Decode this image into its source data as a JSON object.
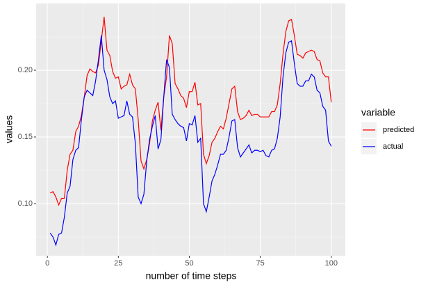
{
  "chart_data": {
    "type": "line",
    "xlabel": "number of time steps",
    "ylabel": "values",
    "legend_title": "variable",
    "legend_position": "right",
    "grid": true,
    "x": [
      1,
      2,
      3,
      4,
      5,
      6,
      7,
      8,
      9,
      10,
      11,
      12,
      13,
      14,
      15,
      16,
      17,
      18,
      19,
      20,
      21,
      22,
      23,
      24,
      25,
      26,
      27,
      28,
      29,
      30,
      31,
      32,
      33,
      34,
      35,
      36,
      37,
      38,
      39,
      40,
      41,
      42,
      43,
      44,
      45,
      46,
      47,
      48,
      49,
      50,
      51,
      52,
      53,
      54,
      55,
      56,
      57,
      58,
      59,
      60,
      61,
      62,
      63,
      64,
      65,
      66,
      67,
      68,
      69,
      70,
      71,
      72,
      73,
      74,
      75,
      76,
      77,
      78,
      79,
      80,
      81,
      82,
      83,
      84,
      85,
      86,
      87,
      88,
      89,
      90,
      91,
      92,
      93,
      94,
      95,
      96,
      97,
      98,
      99,
      100
    ],
    "series": [
      {
        "name": "predicted",
        "color": "#ff0000",
        "values": [
          0.108,
          0.109,
          0.105,
          0.099,
          0.104,
          0.104,
          0.125,
          0.137,
          0.14,
          0.154,
          0.158,
          0.166,
          0.18,
          0.196,
          0.201,
          0.199,
          0.198,
          0.204,
          0.222,
          0.24,
          0.215,
          0.211,
          0.199,
          0.194,
          0.195,
          0.186,
          0.188,
          0.189,
          0.197,
          0.189,
          0.186,
          0.163,
          0.132,
          0.126,
          0.133,
          0.145,
          0.162,
          0.17,
          0.176,
          0.155,
          0.18,
          0.195,
          0.226,
          0.22,
          0.19,
          0.186,
          0.181,
          0.179,
          0.172,
          0.184,
          0.184,
          0.191,
          0.174,
          0.175,
          0.137,
          0.13,
          0.136,
          0.146,
          0.149,
          0.154,
          0.158,
          0.156,
          0.164,
          0.175,
          0.186,
          0.188,
          0.169,
          0.163,
          0.164,
          0.166,
          0.17,
          0.166,
          0.167,
          0.167,
          0.165,
          0.165,
          0.165,
          0.165,
          0.169,
          0.169,
          0.174,
          0.19,
          0.212,
          0.229,
          0.237,
          0.238,
          0.226,
          0.212,
          0.211,
          0.209,
          0.213,
          0.214,
          0.215,
          0.214,
          0.208,
          0.207,
          0.198,
          0.195,
          0.195,
          0.176
        ]
      },
      {
        "name": "actual",
        "color": "#0000ff",
        "values": [
          0.078,
          0.075,
          0.069,
          0.077,
          0.078,
          0.09,
          0.108,
          0.113,
          0.133,
          0.14,
          0.142,
          0.163,
          0.18,
          0.185,
          0.183,
          0.181,
          0.192,
          0.208,
          0.226,
          0.2,
          0.193,
          0.18,
          0.175,
          0.177,
          0.164,
          0.165,
          0.166,
          0.177,
          0.167,
          0.165,
          0.145,
          0.105,
          0.1,
          0.107,
          0.132,
          0.148,
          0.158,
          0.166,
          0.141,
          0.148,
          0.18,
          0.208,
          0.202,
          0.167,
          0.163,
          0.16,
          0.158,
          0.157,
          0.147,
          0.16,
          0.159,
          0.166,
          0.146,
          0.149,
          0.1,
          0.094,
          0.105,
          0.117,
          0.122,
          0.129,
          0.137,
          0.137,
          0.14,
          0.15,
          0.162,
          0.163,
          0.142,
          0.135,
          0.138,
          0.141,
          0.144,
          0.138,
          0.14,
          0.14,
          0.139,
          0.14,
          0.136,
          0.135,
          0.14,
          0.141,
          0.149,
          0.165,
          0.195,
          0.213,
          0.221,
          0.222,
          0.205,
          0.19,
          0.188,
          0.188,
          0.192,
          0.192,
          0.197,
          0.195,
          0.185,
          0.183,
          0.173,
          0.17,
          0.147,
          0.143
        ]
      }
    ],
    "xlim": [
      -3.95,
      104.95
    ],
    "xticks": [
      0,
      25,
      50,
      75,
      100
    ],
    "ylim": [
      0.061,
      0.25
    ],
    "yticks": [
      {
        "value": 0.1,
        "label": "0.10"
      },
      0.15,
      {
        "value": 0.2,
        "label": "0.20"
      }
    ]
  }
}
